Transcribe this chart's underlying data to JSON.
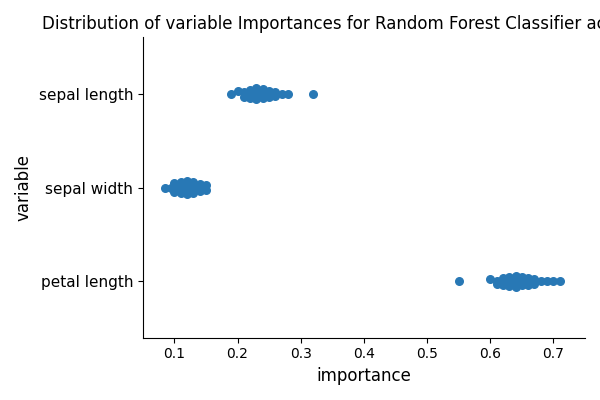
{
  "title": "Distribution of variable Importances for Random Forest Classifier across folds",
  "xlabel": "importance",
  "ylabel": "variable",
  "variables": [
    "petal length",
    "sepal width",
    "sepal length"
  ],
  "dot_color": "#2878b5",
  "dot_size": 30,
  "sepal_length_x": [
    0.19,
    0.2,
    0.21,
    0.21,
    0.22,
    0.22,
    0.22,
    0.23,
    0.23,
    0.23,
    0.23,
    0.23,
    0.24,
    0.24,
    0.24,
    0.24,
    0.24,
    0.25,
    0.25,
    0.25,
    0.25,
    0.26,
    0.26,
    0.26,
    0.27,
    0.28,
    0.32
  ],
  "sepal_length_jy": [
    0.0,
    0.1,
    -0.12,
    0.05,
    -0.18,
    0.15,
    0.0,
    0.2,
    -0.2,
    0.1,
    -0.1,
    0.0,
    0.18,
    -0.18,
    0.08,
    -0.08,
    0.0,
    0.12,
    -0.12,
    0.05,
    -0.05,
    0.08,
    -0.08,
    0.0,
    0.0,
    0.0,
    0.0
  ],
  "sepal_width_x": [
    0.085,
    0.095,
    0.1,
    0.1,
    0.1,
    0.11,
    0.11,
    0.11,
    0.11,
    0.12,
    0.12,
    0.12,
    0.12,
    0.12,
    0.13,
    0.13,
    0.13,
    0.13,
    0.13,
    0.13,
    0.14,
    0.14,
    0.14,
    0.15,
    0.15
  ],
  "sepal_width_jy": [
    0.0,
    0.0,
    0.18,
    -0.18,
    0.0,
    0.22,
    -0.22,
    0.1,
    -0.1,
    0.25,
    -0.25,
    0.12,
    -0.12,
    0.0,
    0.2,
    -0.2,
    0.1,
    -0.1,
    0.05,
    -0.05,
    0.12,
    -0.12,
    0.0,
    0.08,
    -0.08
  ],
  "petal_length_x": [
    0.55,
    0.6,
    0.61,
    0.61,
    0.62,
    0.62,
    0.63,
    0.63,
    0.63,
    0.64,
    0.64,
    0.64,
    0.64,
    0.64,
    0.65,
    0.65,
    0.65,
    0.65,
    0.66,
    0.66,
    0.66,
    0.67,
    0.67,
    0.68,
    0.69,
    0.7,
    0.71
  ],
  "petal_length_jy": [
    0.0,
    0.08,
    -0.08,
    0.0,
    0.12,
    -0.12,
    0.18,
    -0.18,
    0.0,
    0.2,
    -0.2,
    0.1,
    -0.1,
    0.05,
    0.15,
    -0.15,
    0.08,
    -0.08,
    0.12,
    -0.12,
    0.0,
    0.08,
    -0.08,
    0.0,
    0.0,
    0.0,
    0.0
  ],
  "xlim": [
    0.05,
    0.75
  ],
  "ylim": [
    -0.6,
    2.6
  ],
  "jitter_scale": 0.28,
  "figsize": [
    6.0,
    4.0
  ],
  "dpi": 100
}
